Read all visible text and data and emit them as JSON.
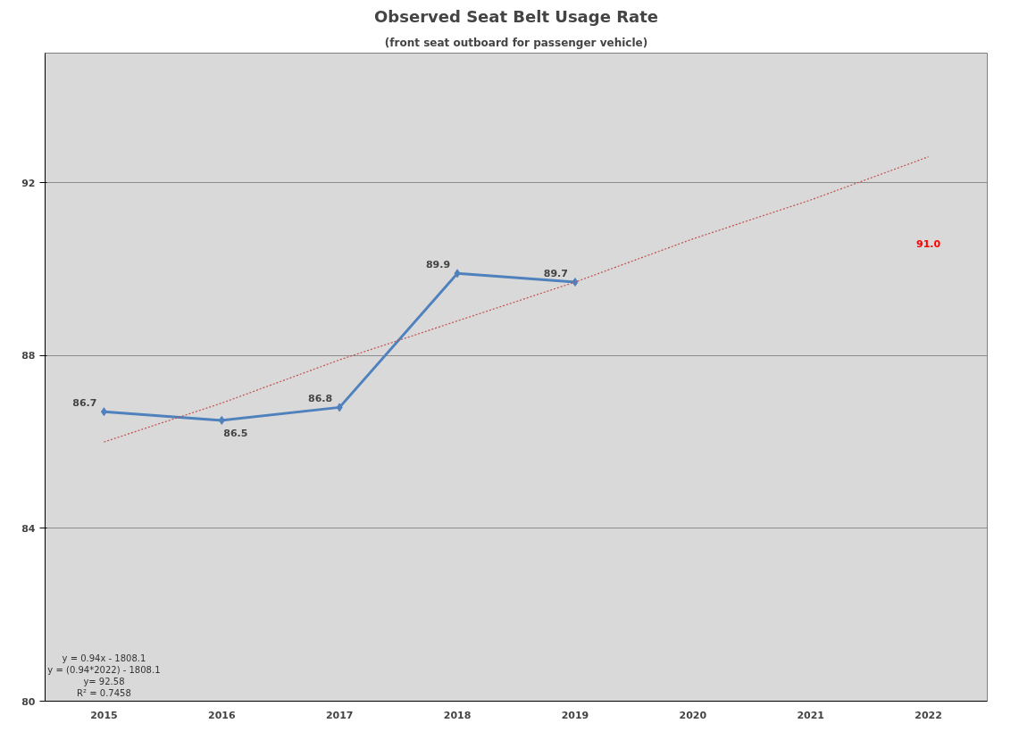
{
  "chart_data": {
    "type": "line",
    "title": "Observed Seat Belt Usage Rate",
    "subtitle": "(front seat outboard for passenger vehicle)",
    "categories": [
      "2015",
      "2016",
      "2017",
      "2018",
      "2019",
      "2020",
      "2021",
      "2022"
    ],
    "series": [
      {
        "color": "#4f81bd",
        "values": [
          86.7,
          86.5,
          86.8,
          89.9,
          89.7,
          null,
          null,
          null
        ],
        "value_labels": [
          "86.7",
          "86.5",
          "86.8",
          "89.9",
          "89.7",
          null,
          null,
          null
        ],
        "marker": "diamond",
        "line_style": "solid"
      },
      {
        "color": "#c0504d",
        "values": [
          86.0,
          86.9,
          87.9,
          88.8,
          89.7,
          90.7,
          91.6,
          92.6
        ],
        "marker": "none",
        "line_style": "dotted"
      }
    ],
    "ylim": [
      80,
      95
    ],
    "yticks": [
      80,
      84,
      88,
      92
    ],
    "grid": "y",
    "annotations": [
      "91.0",
      "y = 0.94x - 1808.1",
      "y = (0.94*2022) - 1808.1",
      "y= 92.58",
      "R² = 0.7458"
    ]
  }
}
